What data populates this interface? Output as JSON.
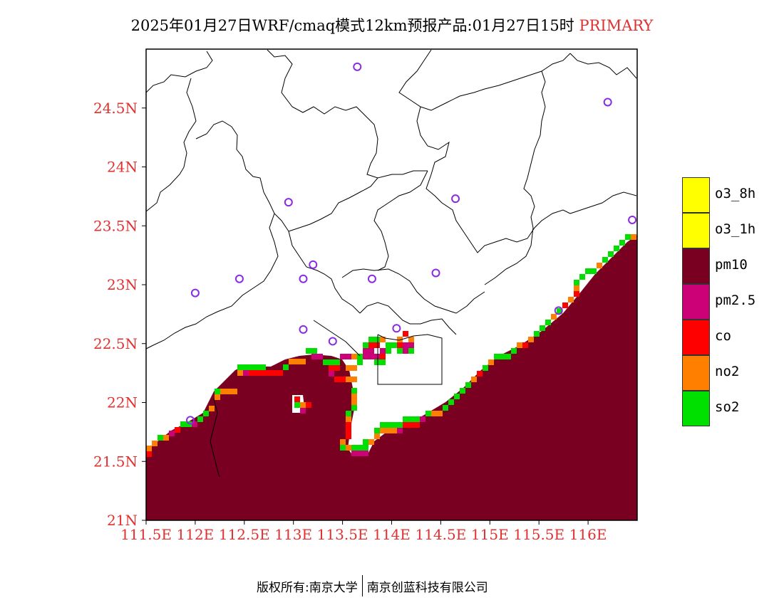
{
  "title": {
    "main": "2025年01月27日WRF/cmaq模式12km预报产品:01月27日15时",
    "pollutant": "PRIMARY"
  },
  "map": {
    "lon_range": [
      111.5,
      116.5
    ],
    "lat_range": [
      21.0,
      25.0
    ],
    "x_ticks": [
      "111.5E",
      "112E",
      "112.5E",
      "113E",
      "113.5E",
      "114E",
      "114.5E",
      "115E",
      "115.5E",
      "116E"
    ],
    "y_ticks": [
      "21N",
      "21.5N",
      "22N",
      "22.5N",
      "23N",
      "23.5N",
      "24N",
      "24.5N"
    ],
    "ocean_color": "#7a0022",
    "stations": [
      {
        "lon": 113.65,
        "lat": 24.85
      },
      {
        "lon": 116.2,
        "lat": 24.55
      },
      {
        "lon": 112.95,
        "lat": 23.7
      },
      {
        "lon": 114.65,
        "lat": 23.73
      },
      {
        "lon": 116.45,
        "lat": 23.55
      },
      {
        "lon": 113.2,
        "lat": 23.17
      },
      {
        "lon": 112.45,
        "lat": 23.05
      },
      {
        "lon": 113.1,
        "lat": 23.05
      },
      {
        "lon": 113.8,
        "lat": 23.05
      },
      {
        "lon": 114.45,
        "lat": 23.1
      },
      {
        "lon": 112.0,
        "lat": 22.93
      },
      {
        "lon": 115.7,
        "lat": 22.78
      },
      {
        "lon": 113.1,
        "lat": 22.62
      },
      {
        "lon": 113.4,
        "lat": 22.52
      },
      {
        "lon": 114.05,
        "lat": 22.63
      },
      {
        "lon": 111.95,
        "lat": 21.85
      }
    ]
  },
  "legend": {
    "items": [
      {
        "label": "o3_8h",
        "color": "#ffff00"
      },
      {
        "label": "o3_1h",
        "color": "#ffff00"
      },
      {
        "label": "pm10",
        "color": "#7a0022"
      },
      {
        "label": "pm2.5",
        "color": "#cc0077"
      },
      {
        "label": "co",
        "color": "#ff0000"
      },
      {
        "label": "no2",
        "color": "#ff8000"
      },
      {
        "label": "so2",
        "color": "#00e000"
      }
    ]
  },
  "footer": {
    "left": "版权所有:南京大学",
    "right": "南京创蓝科技有限公司"
  }
}
